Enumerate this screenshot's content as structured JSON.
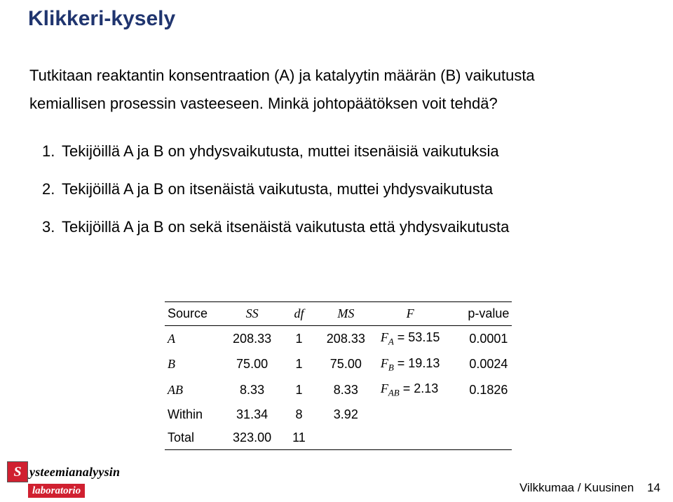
{
  "title": "Klikkeri-kysely",
  "intro_l1_prefix": "Tutkitaan reaktantin konsentraation (A) ja katalyytin m",
  "intro_l1_mid": "ää",
  "intro_l1_suffix": "rän (B) vaikutusta",
  "intro_l2": "kemiallisen prosessin vasteeseen. Minkä johtopäätöksen voit tehdä?",
  "items": [
    "Tekijöillä A ja B on yhdysvaikutusta, muttei itsenäisiä vaikutuksia",
    "Tekijöillä A ja B on itsenäistä vaikutusta, muttei yhdysvaikutusta",
    "Tekijöillä A ja B on sekä itsenäistä vaikutusta että yhdysvaikutusta"
  ],
  "table": {
    "headers": {
      "source": "Source",
      "ss": "SS",
      "df": "df",
      "ms": "MS",
      "f": "F",
      "p": "p-value"
    },
    "rows": [
      {
        "source": "A",
        "source_math": true,
        "ss": "208.33",
        "df": "1",
        "ms": "208.33",
        "f_lhs": "F",
        "f_sub": "A",
        "f_rhs": "= 53.15",
        "p": "0.0001"
      },
      {
        "source": "B",
        "source_math": true,
        "ss": "75.00",
        "df": "1",
        "ms": "75.00",
        "f_lhs": "F",
        "f_sub": "B",
        "f_rhs": "= 19.13",
        "p": "0.0024"
      },
      {
        "source": "AB",
        "source_math": true,
        "ss": "8.33",
        "df": "1",
        "ms": "8.33",
        "f_lhs": "F",
        "f_sub": "AB",
        "f_rhs": "= 2.13",
        "p": "0.1826"
      },
      {
        "source": "Within",
        "source_math": false,
        "ss": "31.34",
        "df": "8",
        "ms": "3.92",
        "f_lhs": "",
        "f_sub": "",
        "f_rhs": "",
        "p": ""
      },
      {
        "source": "Total",
        "source_math": false,
        "ss": "323.00",
        "df": "11",
        "ms": "",
        "f_lhs": "",
        "f_sub": "",
        "f_rhs": "",
        "p": ""
      }
    ]
  },
  "logo": {
    "s": "S",
    "line1": "ysteemianalyysin",
    "line2": "laboratorio"
  },
  "footer": {
    "text": "Vilkkumaa / Kuusinen",
    "page": "14"
  }
}
